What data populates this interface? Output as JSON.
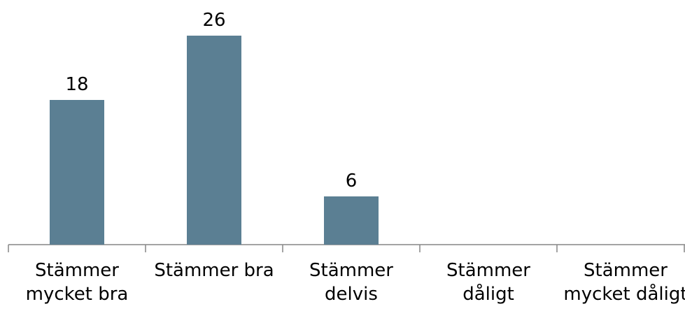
{
  "chart_data": {
    "type": "bar",
    "categories": [
      "Stämmer mycket bra",
      "Stämmer bra",
      "Stämmer delvis",
      "Stämmer dåligt",
      "Stämmer mycket dåligt"
    ],
    "values": [
      18,
      26,
      6,
      null,
      null
    ],
    "color": "#5b7f93"
  }
}
